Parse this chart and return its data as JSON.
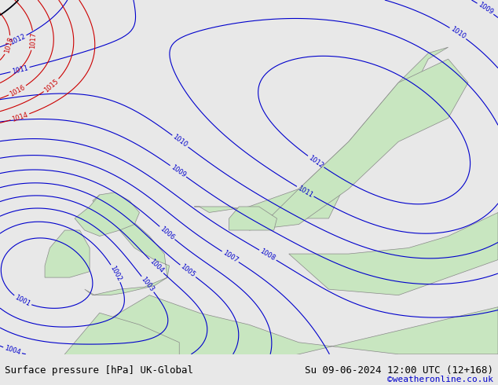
{
  "title_left": "Surface pressure [hPa] UK-Global",
  "title_right": "Su 09-06-2024 12:00 UTC (12+168)",
  "copyright": "©weatheronline.co.uk",
  "background_color": "#e8e8e8",
  "land_color": "#c8e6c0",
  "border_color": "#888888",
  "blue_line_color": "#0000cc",
  "red_line_color": "#cc0000",
  "black_line_color": "#000000",
  "footer_bg": "#ffffff",
  "footer_text_color": "#000000",
  "copyright_color": "#0000cc",
  "font_size_footer": 9,
  "font_size_labels": 7
}
